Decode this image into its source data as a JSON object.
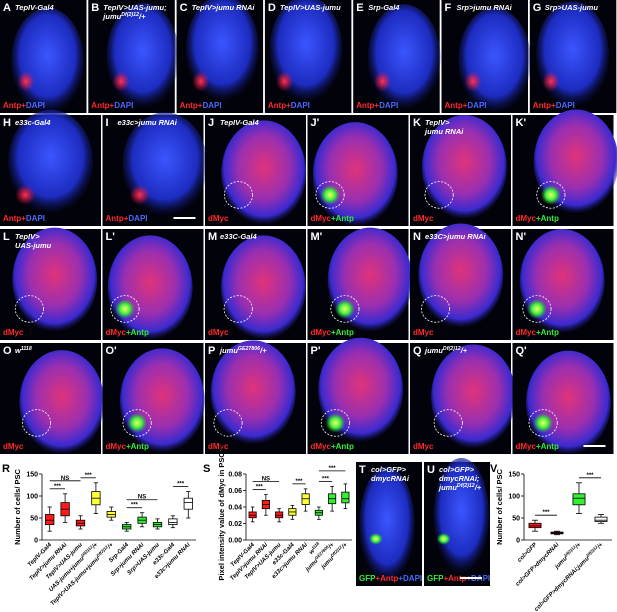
{
  "figure": {
    "panels": [
      {
        "letter": "A",
        "label": [
          [
            "TepIV-Gal4"
          ]
        ],
        "stain": [
          {
            "text": "Antp+",
            "color": "#ff2a2a"
          },
          {
            "text": "DAPI",
            "color": "#4a6bff"
          }
        ]
      },
      {
        "letter": "B",
        "label": [
          [
            "TepIV>UAS-jumu;"
          ],
          [
            "jumu",
            "Df(2)12",
            "/+"
          ]
        ],
        "stain": [
          {
            "text": "Antp+",
            "color": "#ff2a2a"
          },
          {
            "text": "DAPI",
            "color": "#4a6bff"
          }
        ]
      },
      {
        "letter": "C",
        "label": [
          [
            "TepIV>jumu RNAi"
          ]
        ],
        "stain": [
          {
            "text": "Antp+",
            "color": "#ff2a2a"
          },
          {
            "text": "DAPI",
            "color": "#4a6bff"
          }
        ]
      },
      {
        "letter": "D",
        "label": [
          [
            "TepIV>UAS-jumu"
          ]
        ],
        "stain": [
          {
            "text": "Antp+",
            "color": "#ff2a2a"
          },
          {
            "text": "DAPI",
            "color": "#4a6bff"
          }
        ]
      },
      {
        "letter": "E",
        "label": [
          [
            "Srp-Gal4"
          ]
        ],
        "stain": [
          {
            "text": "Antp+",
            "color": "#ff2a2a"
          },
          {
            "text": "DAPI",
            "color": "#4a6bff"
          }
        ]
      },
      {
        "letter": "F",
        "label": [
          [
            "Srp>jumu RNAi"
          ]
        ],
        "stain": [
          {
            "text": "Antp+",
            "color": "#ff2a2a"
          },
          {
            "text": "DAPI",
            "color": "#4a6bff"
          }
        ]
      },
      {
        "letter": "G",
        "label": [
          [
            "Srp>UAS-jumu"
          ]
        ],
        "stain": [
          {
            "text": "Antp+",
            "color": "#ff2a2a"
          },
          {
            "text": "DAPI",
            "color": "#4a6bff"
          }
        ]
      },
      {
        "letter": "H",
        "label": [
          [
            "e33c-Gal4"
          ]
        ],
        "stain": [
          {
            "text": "Antp+",
            "color": "#ff2a2a"
          },
          {
            "text": "DAPI",
            "color": "#4a6bff"
          }
        ]
      },
      {
        "letter": "I",
        "label": [
          [
            "e33c>jumu RNAi"
          ]
        ],
        "stain": [
          {
            "text": "Antp+",
            "color": "#ff2a2a"
          },
          {
            "text": "DAPI",
            "color": "#4a6bff"
          }
        ]
      },
      {
        "letter": "J",
        "label": [
          [
            "TepIV-Gal4"
          ]
        ],
        "stain": [
          {
            "text": "dMyc",
            "color": "#ff2a2a"
          }
        ]
      },
      {
        "letter": "J'",
        "label": [],
        "stain": [
          {
            "text": "dMyc",
            "color": "#ff2a2a"
          },
          {
            "text": "+Antp",
            "color": "#33ee33"
          }
        ]
      },
      {
        "letter": "K",
        "label": [
          [
            "TepIV>"
          ],
          [
            "jumu RNAi"
          ]
        ],
        "stain": [
          {
            "text": "dMyc",
            "color": "#ff2a2a"
          }
        ]
      },
      {
        "letter": "K'",
        "label": [],
        "stain": [
          {
            "text": "dMyc",
            "color": "#ff2a2a"
          },
          {
            "text": "+Antp",
            "color": "#33ee33"
          }
        ]
      },
      {
        "letter": "L",
        "label": [
          [
            "TepIV>"
          ],
          [
            "UAS-jumu"
          ]
        ],
        "stain": [
          {
            "text": "dMyc",
            "color": "#ff2a2a"
          }
        ]
      },
      {
        "letter": "L'",
        "label": [],
        "stain": [
          {
            "text": "dMyc",
            "color": "#ff2a2a"
          },
          {
            "text": "+Antp",
            "color": "#33ee33"
          }
        ]
      },
      {
        "letter": "M",
        "label": [
          [
            "e33C-Gal4"
          ]
        ],
        "stain": [
          {
            "text": "dMyc",
            "color": "#ff2a2a"
          }
        ]
      },
      {
        "letter": "M'",
        "label": [],
        "stain": [
          {
            "text": "dMyc",
            "color": "#ff2a2a"
          },
          {
            "text": "+Antp",
            "color": "#33ee33"
          }
        ]
      },
      {
        "letter": "N",
        "label": [
          [
            "e33C>jumu RNAi"
          ]
        ],
        "stain": [
          {
            "text": "dMyc",
            "color": "#ff2a2a"
          }
        ]
      },
      {
        "letter": "N'",
        "label": [],
        "stain": [
          {
            "text": "dMyc",
            "color": "#ff2a2a"
          },
          {
            "text": "+Antp",
            "color": "#33ee33"
          }
        ]
      },
      {
        "letter": "O",
        "label": [
          [
            "w",
            "1118"
          ]
        ],
        "stain": [
          {
            "text": "dMyc",
            "color": "#ff2a2a"
          }
        ]
      },
      {
        "letter": "O'",
        "label": [],
        "stain": [
          {
            "text": "dMyc",
            "color": "#ff2a2a"
          },
          {
            "text": "+Antp",
            "color": "#33ee33"
          }
        ]
      },
      {
        "letter": "P",
        "label": [
          [
            "jumu",
            "GE27806",
            "/+"
          ]
        ],
        "stain": [
          {
            "text": "dMyc",
            "color": "#ff2a2a"
          }
        ]
      },
      {
        "letter": "P'",
        "label": [],
        "stain": [
          {
            "text": "dMyc",
            "color": "#ff2a2a"
          },
          {
            "text": "+Antp",
            "color": "#33ee33"
          }
        ]
      },
      {
        "letter": "Q",
        "label": [
          [
            "jumu",
            "Df(2)12",
            "/+"
          ]
        ],
        "stain": [
          {
            "text": "dMyc",
            "color": "#ff2a2a"
          }
        ]
      },
      {
        "letter": "Q'",
        "label": [],
        "stain": [
          {
            "text": "dMyc",
            "color": "#ff2a2a"
          },
          {
            "text": "+Antp",
            "color": "#33ee33"
          }
        ]
      },
      {
        "letter": "T",
        "label": [
          [
            "col>GFP>"
          ],
          [
            "dmycRNAi"
          ]
        ],
        "stain": [
          {
            "text": "GFP",
            "color": "#33ee33"
          },
          {
            "text": "+Antp",
            "color": "#ff2a2a"
          },
          {
            "text": "+DAPI",
            "color": "#4a6bff"
          }
        ]
      },
      {
        "letter": "U",
        "label": [
          [
            "col>GFP>"
          ],
          [
            "dmycRNAi;"
          ],
          [
            "jumu",
            "Df(2)12",
            "/+"
          ]
        ],
        "stain": [
          {
            "text": "GFP",
            "color": "#33ee33"
          },
          {
            "text": "+Antp",
            "color": "#ff2a2a"
          },
          {
            "text": "+DAPI",
            "color": "#4a6bff"
          }
        ]
      }
    ]
  },
  "chart_data": [
    {
      "type": "box",
      "letter": "R",
      "ylabel": "Number of cells/ PSC",
      "categories": [
        [
          "TepIV-Gal4"
        ],
        [
          "TepIV>jumu RNAi"
        ],
        [
          "TepIV>UAS-jumu"
        ],
        [
          "UAS-jumu+jumu",
          "Df(2)12",
          "/+"
        ],
        [
          "TepIV>UAS-jumu+jumu",
          "Df(2)12",
          "/+"
        ],
        [
          "Srp-Gal4"
        ],
        [
          "Srp>jumu RNAi"
        ],
        [
          "Srp>UAS-jumu"
        ],
        [
          "e33c-Gal4"
        ],
        [
          "e33c>jumu RNAi"
        ]
      ],
      "min": [
        20,
        40,
        25,
        60,
        45,
        20,
        30,
        25,
        28,
        50
      ],
      "q1": [
        35,
        55,
        32,
        80,
        52,
        25,
        38,
        30,
        35,
        70
      ],
      "median": [
        45,
        70,
        38,
        95,
        58,
        30,
        45,
        35,
        40,
        85
      ],
      "q3": [
        58,
        85,
        45,
        110,
        65,
        35,
        52,
        40,
        48,
        95
      ],
      "max": [
        75,
        105,
        55,
        130,
        75,
        40,
        62,
        48,
        55,
        110
      ],
      "colors": [
        "#ff1a1a",
        "#ff1a1a",
        "#ff1a1a",
        "#ffff33",
        "#ffff33",
        "#33ee33",
        "#33ee33",
        "#33ee33",
        "#ffffff",
        "#ffffff"
      ],
      "ylim": [
        0,
        150
      ],
      "yticks": [
        0,
        50,
        100,
        150
      ],
      "annotations": [
        "***",
        "NS",
        "***",
        "***",
        "NS",
        "***"
      ]
    },
    {
      "type": "box",
      "letter": "S",
      "ylabel": "Pixel intensity value of dMyc in PSC cells",
      "categories": [
        [
          "TepIV-Gal4"
        ],
        [
          "TepIV>jumu RNAi"
        ],
        [
          "TepIV>UAS-jumu"
        ],
        [
          "e33c-Gal4"
        ],
        [
          "e33c>jumu RNAi"
        ],
        [
          "w",
          "1118"
        ],
        [
          "jumu",
          "GE27806",
          "/+"
        ],
        [
          "jumu",
          "Df(2)12",
          "/+"
        ]
      ],
      "min": [
        0.022,
        0.03,
        0.022,
        0.025,
        0.035,
        0.025,
        0.035,
        0.038
      ],
      "q1": [
        0.027,
        0.038,
        0.027,
        0.03,
        0.043,
        0.03,
        0.044,
        0.045
      ],
      "median": [
        0.03,
        0.043,
        0.03,
        0.034,
        0.05,
        0.033,
        0.05,
        0.05
      ],
      "q3": [
        0.034,
        0.048,
        0.034,
        0.038,
        0.056,
        0.036,
        0.056,
        0.058
      ],
      "max": [
        0.04,
        0.055,
        0.038,
        0.042,
        0.062,
        0.04,
        0.065,
        0.068
      ],
      "colors": [
        "#ff1a1a",
        "#ff1a1a",
        "#ff1a1a",
        "#ffff33",
        "#ffff33",
        "#33ee33",
        "#33ee33",
        "#33ee33"
      ],
      "ylim": [
        0,
        0.08
      ],
      "yticks": [
        {
          "value": 0,
          "label": "0.00"
        },
        0.02,
        0.04,
        0.06,
        0.08
      ],
      "annotations": [
        "***",
        "NS",
        "***",
        "***",
        "***"
      ]
    },
    {
      "type": "box",
      "letter": "V",
      "ylabel": "Number of cells/ PSC",
      "categories": [
        [
          "col>GFP"
        ],
        [
          "col>GFP>dmycRNAi"
        ],
        [
          "jumu",
          "Df(2)12",
          "/+"
        ],
        [
          "col>GFP>dmycRNAi;jumu",
          "Df(2)12",
          "/+"
        ]
      ],
      "min": [
        20,
        12,
        60,
        38
      ],
      "q1": [
        28,
        14,
        80,
        42
      ],
      "median": [
        32,
        16,
        95,
        45
      ],
      "q3": [
        38,
        18,
        105,
        52
      ],
      "max": [
        45,
        20,
        130,
        58
      ],
      "colors": [
        "#ff1a1a",
        "#ff1a1a",
        "#33ee33",
        "#ffffff"
      ],
      "ylim": [
        0,
        150
      ],
      "yticks": [
        0,
        50,
        100,
        150
      ],
      "annotations": [
        "***",
        "***"
      ]
    }
  ]
}
